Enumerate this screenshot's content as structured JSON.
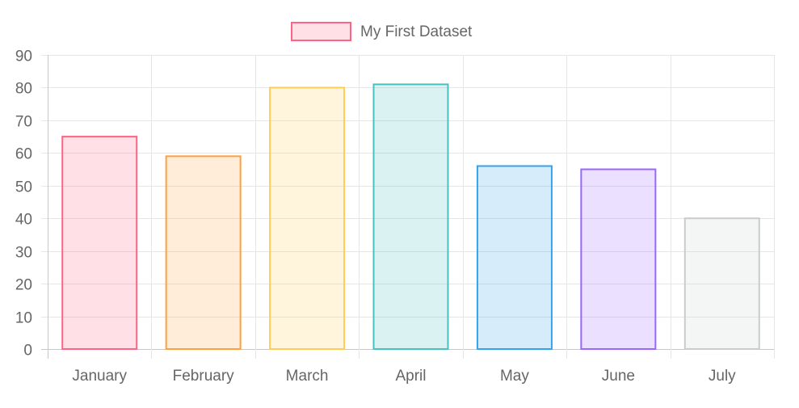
{
  "chart_data": {
    "type": "bar",
    "title": "",
    "xlabel": "",
    "ylabel": "",
    "categories": [
      "January",
      "February",
      "March",
      "April",
      "May",
      "June",
      "July"
    ],
    "series": [
      {
        "name": "My First Dataset",
        "values": [
          65,
          59,
          80,
          81,
          56,
          55,
          40
        ]
      }
    ],
    "ylim": [
      0,
      90
    ],
    "yticks": [
      0,
      10,
      20,
      30,
      40,
      50,
      60,
      70,
      80,
      90
    ],
    "grid": true,
    "legend_position": "top",
    "bar_fills": [
      "rgba(255, 99, 132, 0.2)",
      "rgba(255, 159, 64, 0.2)",
      "rgba(255, 205, 86, 0.2)",
      "rgba(75, 192, 192, 0.2)",
      "rgba(54, 162, 235, 0.2)",
      "rgba(153, 102, 255, 0.2)",
      "rgba(201, 203, 207, 0.2)"
    ],
    "bar_borders": [
      "rgb(255, 99, 132)",
      "rgb(255, 159, 64)",
      "rgb(255, 205, 86)",
      "rgb(75, 192, 192)",
      "rgb(54, 162, 235)",
      "rgb(153, 102, 255)",
      "rgb(201, 203, 207)"
    ],
    "legend_swatch_fill": "rgba(255, 99, 132, 0.2)",
    "legend_swatch_border": "rgb(255, 99, 132)"
  }
}
